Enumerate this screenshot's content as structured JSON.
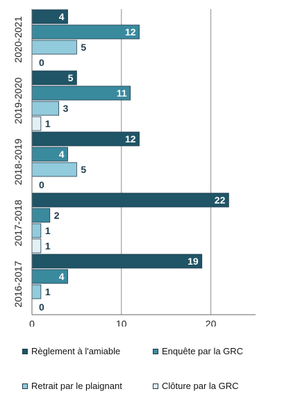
{
  "chart_data": {
    "type": "bar",
    "orientation": "horizontal",
    "categories": [
      "2020-2021",
      "2019-2020",
      "2018-2019",
      "2017-2018",
      "2016-2017"
    ],
    "series": [
      {
        "name": "Règlement à l'amiable",
        "values": [
          4,
          5,
          12,
          22,
          19
        ],
        "color": "#1f5566"
      },
      {
        "name": "Enquête par la GRC",
        "values": [
          12,
          11,
          4,
          2,
          4
        ],
        "color": "#3a8a9e"
      },
      {
        "name": "Retrait par le plaignant",
        "values": [
          5,
          3,
          5,
          1,
          1
        ],
        "color": "#92cbdc"
      },
      {
        "name": "Clôture par la GRC",
        "values": [
          0,
          1,
          0,
          1,
          0
        ],
        "color": "#e1f0f5"
      }
    ],
    "xlim": [
      0,
      25
    ],
    "xticks": [
      0,
      10,
      20
    ],
    "grid": true,
    "legend_position": "bottom",
    "label_color_dark": "#ffffff",
    "label_color_light": "#1f3b4d"
  }
}
